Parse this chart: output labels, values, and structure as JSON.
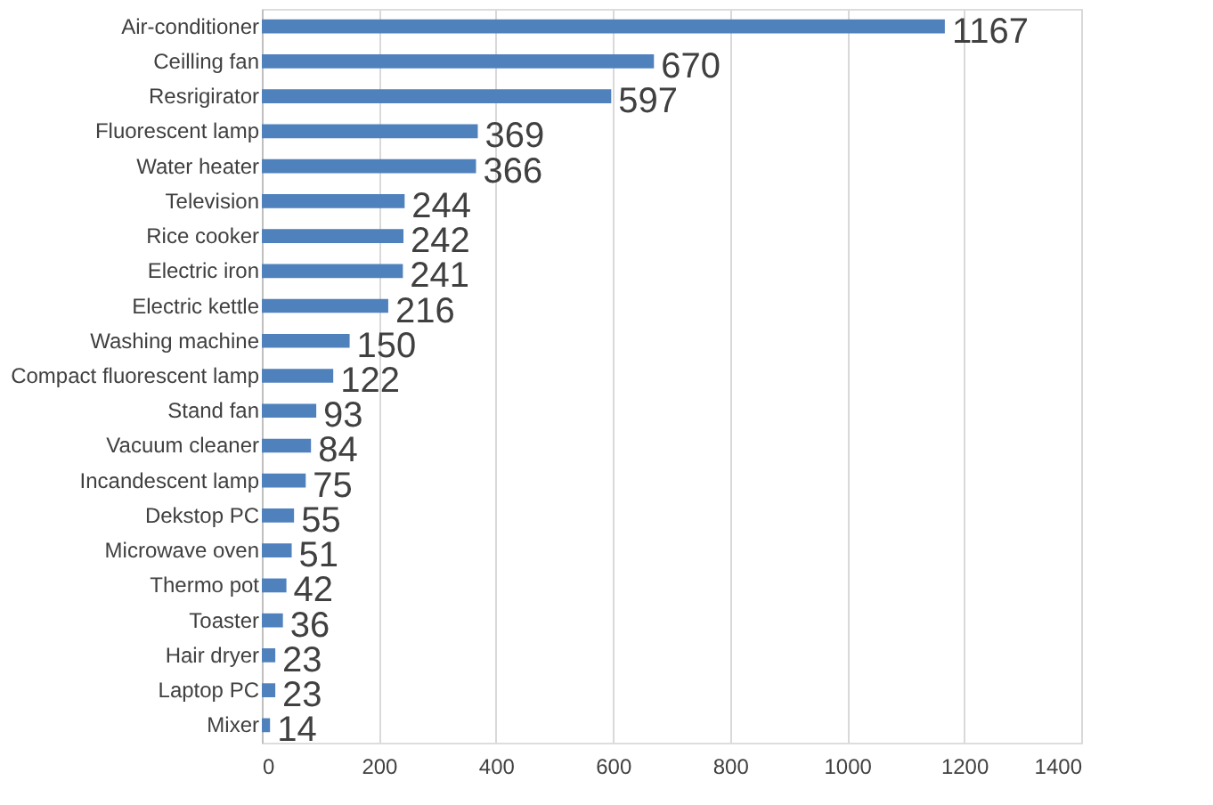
{
  "chart_data": {
    "type": "bar",
    "orientation": "horizontal",
    "categories": [
      "Air-conditioner",
      "Ceilling fan",
      "Resrigirator",
      "Fluorescent lamp",
      "Water heater",
      "Television",
      "Rice cooker",
      "Electric iron",
      "Electric kettle",
      "Washing machine",
      "Compact fluorescent lamp",
      "Stand fan",
      "Vacuum cleaner",
      "Incandescent lamp",
      "Dekstop PC",
      "Microwave oven",
      "Thermo pot",
      "Toaster",
      "Hair dryer",
      "Laptop PC",
      "Mixer"
    ],
    "values": [
      1167,
      670,
      597,
      369,
      366,
      244,
      242,
      241,
      216,
      150,
      122,
      93,
      84,
      75,
      55,
      51,
      42,
      36,
      23,
      23,
      14
    ],
    "color": "#4f81bd",
    "xlim": [
      0,
      1400
    ],
    "xticks": [
      0,
      200,
      400,
      600,
      800,
      1000,
      1200,
      1400
    ],
    "grid": "x",
    "data_labels": true
  }
}
